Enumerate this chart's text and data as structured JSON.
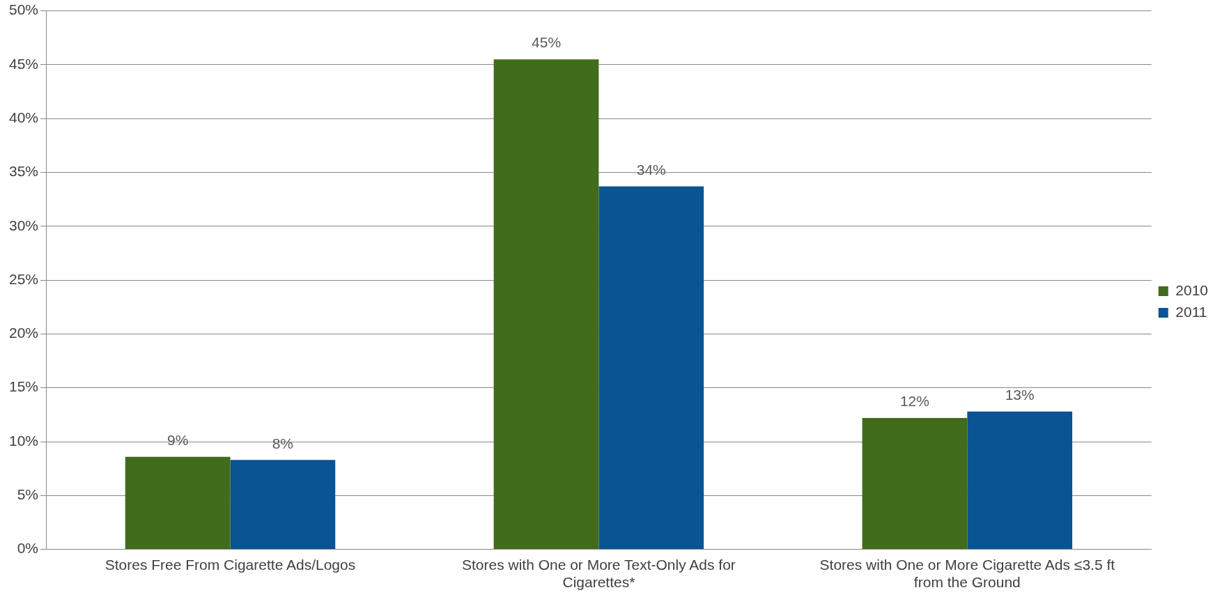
{
  "chart_data": {
    "type": "bar",
    "categories": [
      "Stores Free From Cigarette Ads/Logos",
      "Stores with One or More Text-Only Ads for Cigarettes*",
      "Stores with One or More Cigarette Ads ≤3.5 ft from the Ground"
    ],
    "series": [
      {
        "name": "2010",
        "color": "#416c1b",
        "values": [
          8.6,
          45.5,
          12.2
        ],
        "value_labels": [
          "9%",
          "45%",
          "12%"
        ]
      },
      {
        "name": "2011",
        "color": "#0a5494",
        "values": [
          8.3,
          33.7,
          12.8
        ],
        "value_labels": [
          "8%",
          "34%",
          "13%"
        ]
      }
    ],
    "ylim": [
      0,
      50
    ],
    "yticks": [
      {
        "value": 0,
        "label": "0%"
      },
      {
        "value": 5,
        "label": "5%"
      },
      {
        "value": 10,
        "label": "10%"
      },
      {
        "value": 15,
        "label": "15%"
      },
      {
        "value": 20,
        "label": "20%"
      },
      {
        "value": 25,
        "label": "25%"
      },
      {
        "value": 30,
        "label": "30%"
      },
      {
        "value": 35,
        "label": "35%"
      },
      {
        "value": 40,
        "label": "40%"
      },
      {
        "value": 45,
        "label": "45%"
      },
      {
        "value": 50,
        "label": "50%"
      }
    ],
    "grid": "y",
    "legend": "right"
  }
}
